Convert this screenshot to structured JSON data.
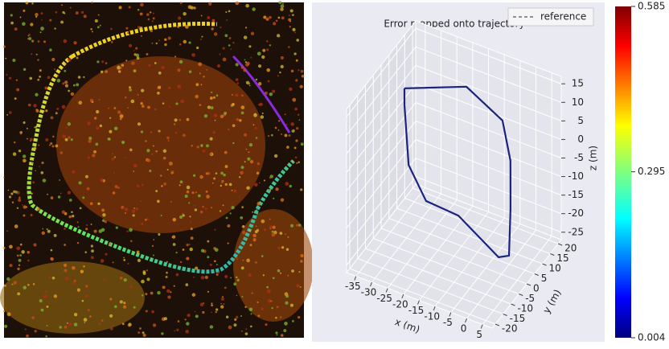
{
  "chart_data": {
    "type": "line3d",
    "title": "Error mapped onto trajectory",
    "xlabel": "x (m)",
    "ylabel": "y (m)",
    "zlabel": "z (m)",
    "xlim": [
      -38,
      8
    ],
    "ylim": [
      -22,
      22
    ],
    "zlim": [
      -27,
      17
    ],
    "xticks": [
      -35,
      -30,
      -25,
      -20,
      -15,
      -10,
      -5,
      0,
      5
    ],
    "yticks": [
      -20,
      -15,
      -10,
      -5,
      0,
      5,
      10,
      15,
      20
    ],
    "zticks": [
      -25,
      -20,
      -15,
      -10,
      -5,
      0,
      5,
      10,
      15
    ],
    "grid": true,
    "legend": "upper right",
    "series": [
      {
        "name": "reference",
        "color": "#1a237e",
        "x": [
          -36.6,
          -19.0,
          -5.6,
          -1.1,
          1.9,
          4.4,
          1.1,
          -11.6,
          -23.8,
          -31.3,
          -35.6,
          -36.6
        ],
        "y": [
          12,
          16,
          12,
          8,
          2,
          -4,
          -4,
          -4,
          0,
          4,
          10,
          12
        ],
        "z": [
          4.7,
          8.7,
          6.1,
          -1.1,
          -9.9,
          -18.4,
          -19.9,
          -12.8,
          -15.0,
          -9.9,
          1.7,
          4.7
        ]
      }
    ],
    "colorbar": {
      "colormap": "jet",
      "lim": [
        0.004,
        0.585
      ],
      "ticks": [
        0.004,
        0.295,
        0.585
      ]
    }
  }
}
